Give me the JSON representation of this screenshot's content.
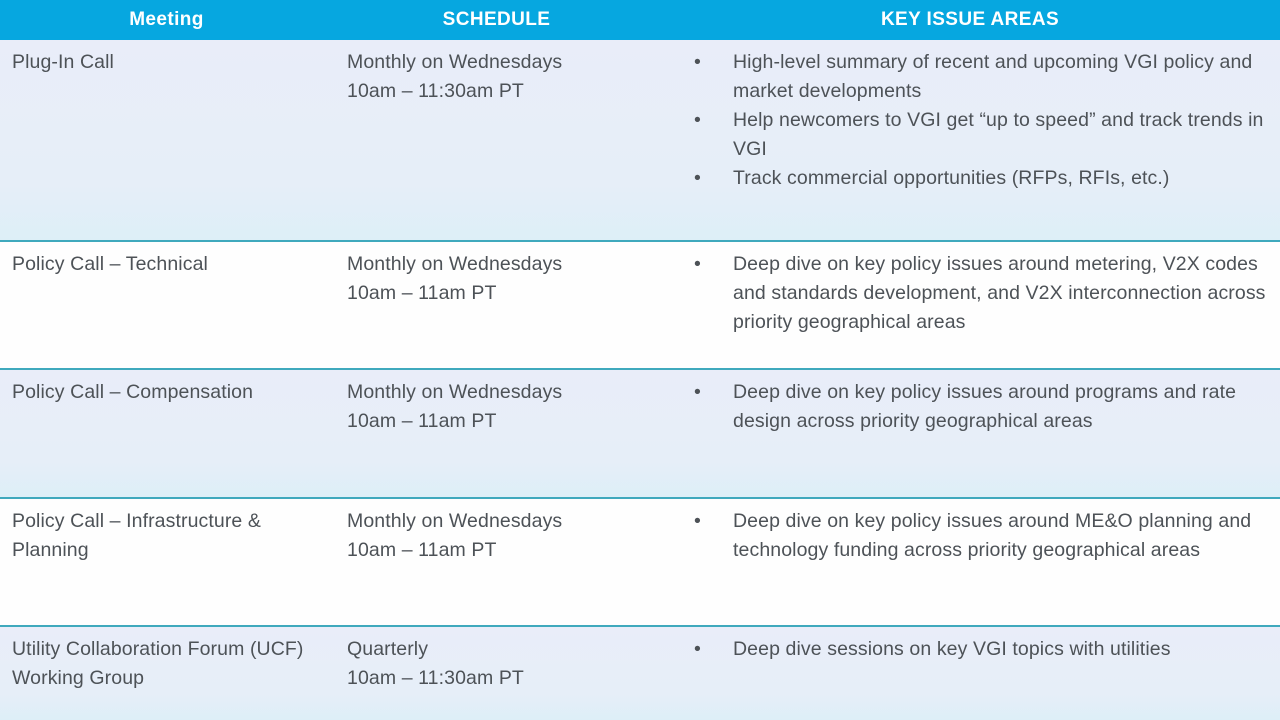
{
  "table": {
    "columns": [
      {
        "key": "meeting",
        "label": "Meeting"
      },
      {
        "key": "schedule",
        "label": "SCHEDULE"
      },
      {
        "key": "key_issues",
        "label": "KEY ISSUE AREAS"
      }
    ],
    "rows": [
      {
        "meeting": "Plug-In Call",
        "schedule": [
          "Monthly on Wednesdays",
          "10am – 11:30am PT"
        ],
        "key_issues": [
          "High-level summary of recent and upcoming VGI policy and market developments",
          "Help newcomers to VGI get “up to speed” and track trends in VGI",
          "Track commercial opportunities (RFPs, RFIs, etc.)"
        ]
      },
      {
        "meeting": "Policy Call – Technical",
        "schedule": [
          "Monthly on Wednesdays",
          "10am – 11am PT"
        ],
        "key_issues": [
          "Deep dive on key policy issues around metering, V2X codes and standards development, and V2X interconnection across priority geographical areas"
        ]
      },
      {
        "meeting": "Policy Call – Compensation",
        "schedule": [
          "Monthly on Wednesdays",
          "10am – 11am PT"
        ],
        "key_issues": [
          "Deep dive on key policy issues around programs and rate design across priority geographical areas"
        ]
      },
      {
        "meeting": "Policy Call – Infrastructure & Planning",
        "schedule": [
          "Monthly on Wednesdays",
          "10am – 11am PT"
        ],
        "key_issues": [
          "Deep dive on key policy issues around ME&O planning and technology funding across priority geographical areas"
        ]
      },
      {
        "meeting": "Utility Collaboration Forum (UCF) Working Group",
        "schedule": [
          "Quarterly",
          "10am – 11:30am PT"
        ],
        "key_issues": [
          "Deep dive sessions on key VGI topics with utilities"
        ]
      }
    ]
  },
  "icons": {
    "bullet": "•"
  },
  "colors": {
    "header_bg": "#06a7e0",
    "header_text": "#ffffff",
    "row_band_bg": "#e7eef8",
    "row_plain_bg": "#fefefe",
    "row_divider": "#3fa9bd",
    "body_text": "#4d5257"
  }
}
